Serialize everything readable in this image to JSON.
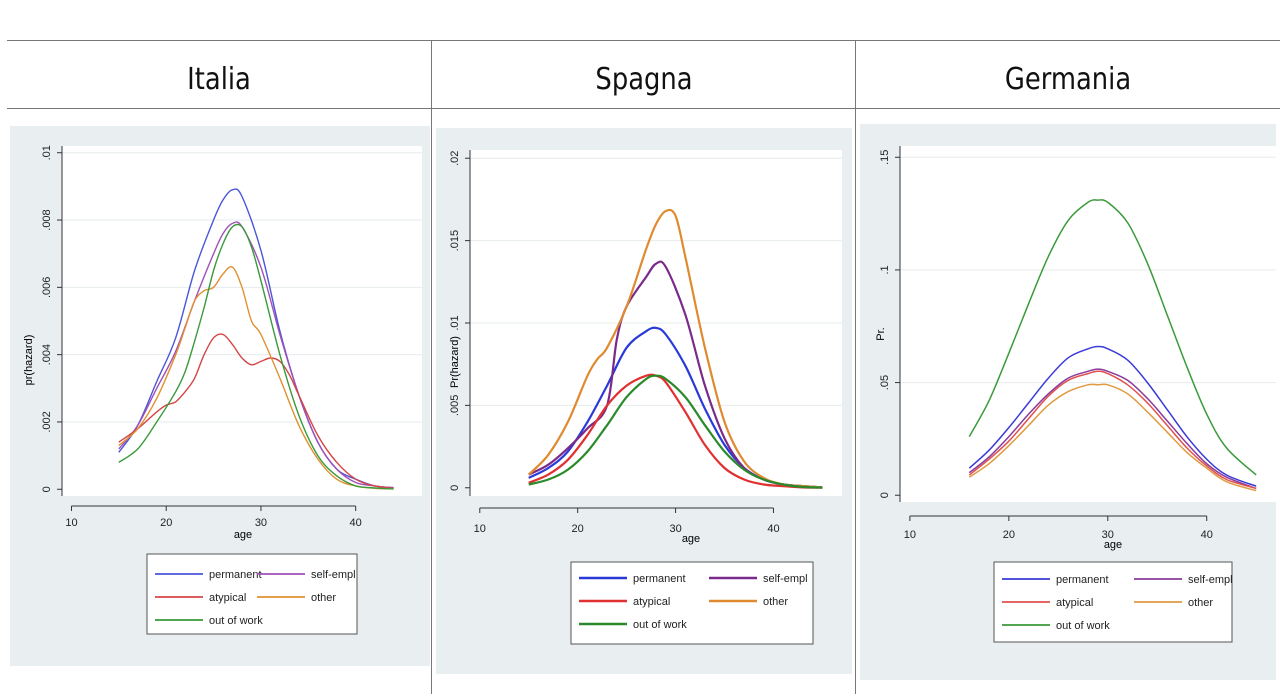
{
  "panels": [
    {
      "title": "Italia"
    },
    {
      "title": "Spagna"
    },
    {
      "title": "Germania"
    }
  ],
  "chart_data": [
    {
      "type": "line",
      "title": "Italia",
      "xlabel": "age",
      "ylabel": "pr(hazard)",
      "xlim": [
        9,
        47
      ],
      "ylim": [
        -0.0002,
        0.0102
      ],
      "xticks": [
        10,
        20,
        30,
        40
      ],
      "xtick_labels": [
        "10",
        "20",
        "30",
        "40"
      ],
      "yticks": [
        0,
        0.002,
        0.004,
        0.006,
        0.008,
        0.01
      ],
      "ytick_labels": [
        "0",
        ".002",
        ".004",
        ".006",
        ".008",
        ".01"
      ],
      "legend_placement": "bottom",
      "series": [
        {
          "name": "permanent",
          "color": "#4a56d8",
          "x": [
            15,
            17,
            19,
            21,
            23,
            25,
            26,
            27,
            28,
            30,
            32,
            34,
            36,
            38,
            40,
            42,
            44
          ],
          "y": [
            0.0011,
            0.0019,
            0.0032,
            0.0045,
            0.0065,
            0.008,
            0.0086,
            0.0089,
            0.0087,
            0.0071,
            0.0047,
            0.0028,
            0.0014,
            0.0006,
            0.0003,
            0.0001,
            5e-05
          ]
        },
        {
          "name": "self-empl",
          "color": "#a050b8",
          "x": [
            15,
            17,
            19,
            21,
            23,
            25,
            26,
            27,
            28,
            30,
            32,
            34,
            36,
            38,
            40,
            42,
            44
          ],
          "y": [
            0.0012,
            0.0019,
            0.003,
            0.0041,
            0.0056,
            0.007,
            0.0076,
            0.0079,
            0.0078,
            0.0066,
            0.0046,
            0.0028,
            0.0014,
            0.0006,
            0.0002,
            0.0001,
            4e-05
          ]
        },
        {
          "name": "atypical",
          "color": "#d44545",
          "x": [
            15,
            17,
            19,
            20,
            21,
            22,
            23,
            24,
            25,
            26,
            27,
            28,
            29,
            30,
            31,
            32,
            33,
            34,
            36,
            38,
            40,
            42,
            44
          ],
          "y": [
            0.0014,
            0.0018,
            0.0023,
            0.0025,
            0.0026,
            0.0029,
            0.0033,
            0.004,
            0.0045,
            0.0046,
            0.0043,
            0.0039,
            0.0037,
            0.0038,
            0.0039,
            0.0038,
            0.0034,
            0.0028,
            0.0016,
            0.0008,
            0.0003,
            0.0001,
            3e-05
          ]
        },
        {
          "name": "other",
          "color": "#e09030",
          "x": [
            15,
            17,
            19,
            21,
            22,
            23,
            24,
            25,
            26,
            27,
            28,
            29,
            30,
            32,
            34,
            36,
            38,
            40,
            42,
            44
          ],
          "y": [
            0.0013,
            0.0018,
            0.0027,
            0.004,
            0.0048,
            0.0056,
            0.0059,
            0.006,
            0.0064,
            0.0066,
            0.006,
            0.005,
            0.0046,
            0.0033,
            0.0019,
            0.0009,
            0.0003,
            0.0001,
            3e-05,
            1e-05
          ]
        },
        {
          "name": "out of work",
          "color": "#3a9a3a",
          "x": [
            15,
            17,
            19,
            21,
            22,
            23,
            24,
            25,
            26,
            27,
            28,
            29,
            30,
            32,
            34,
            36,
            38,
            40,
            42,
            44
          ],
          "y": [
            0.0008,
            0.0012,
            0.002,
            0.0029,
            0.0035,
            0.0044,
            0.0054,
            0.0065,
            0.0073,
            0.0078,
            0.0078,
            0.0072,
            0.0062,
            0.004,
            0.0022,
            0.001,
            0.0004,
            0.0001,
            4e-05,
            1e-05
          ]
        }
      ]
    },
    {
      "type": "line",
      "title": "Spagna",
      "xlabel": "age",
      "ylabel": "Pr(hazard)",
      "xlim": [
        9,
        47
      ],
      "ylim": [
        -0.0005,
        0.0205
      ],
      "xticks": [
        10,
        20,
        30,
        40
      ],
      "xtick_labels": [
        "10",
        "20",
        "30",
        "40"
      ],
      "yticks": [
        0,
        0.005,
        0.01,
        0.015,
        0.02
      ],
      "ytick_labels": [
        "0",
        ".005",
        ".01",
        ".015",
        ".02"
      ],
      "legend_placement": "bottom",
      "series": [
        {
          "name": "permanent",
          "color": "#2a3ad8",
          "x": [
            15,
            17,
            19,
            21,
            23,
            25,
            27,
            28,
            29,
            31,
            33,
            35,
            37,
            39,
            41,
            43,
            45
          ],
          "y": [
            0.0006,
            0.0012,
            0.0022,
            0.004,
            0.0062,
            0.0085,
            0.0095,
            0.0097,
            0.0093,
            0.0074,
            0.0048,
            0.0026,
            0.0012,
            0.0005,
            0.0002,
            0.0001,
            2e-05
          ]
        },
        {
          "name": "self-empl",
          "color": "#7a2a8a",
          "x": [
            15,
            17,
            19,
            21,
            23,
            24,
            25,
            27,
            28,
            29,
            31,
            33,
            35,
            37,
            39,
            41,
            43,
            45
          ],
          "y": [
            0.0008,
            0.0014,
            0.0024,
            0.0036,
            0.005,
            0.009,
            0.011,
            0.0128,
            0.0136,
            0.0134,
            0.0105,
            0.0062,
            0.003,
            0.0012,
            0.0005,
            0.0002,
            0.0001,
            2e-05
          ]
        },
        {
          "name": "atypical",
          "color": "#e03030",
          "x": [
            15,
            17,
            19,
            21,
            23,
            25,
            27,
            28,
            29,
            31,
            33,
            35,
            37,
            39,
            41,
            43,
            45
          ],
          "y": [
            0.0003,
            0.0008,
            0.0017,
            0.0032,
            0.005,
            0.0062,
            0.0068,
            0.0068,
            0.0064,
            0.0046,
            0.0026,
            0.0012,
            0.0005,
            0.0002,
            0.0001,
            2e-05,
            1e-05
          ]
        },
        {
          "name": "other",
          "color": "#e08a30",
          "x": [
            15,
            17,
            19,
            21,
            22,
            23,
            25,
            27,
            28,
            29,
            30,
            31,
            33,
            35,
            37,
            39,
            41,
            43,
            45
          ],
          "y": [
            0.0008,
            0.002,
            0.004,
            0.0068,
            0.0078,
            0.0085,
            0.011,
            0.0145,
            0.016,
            0.0168,
            0.0165,
            0.014,
            0.0085,
            0.004,
            0.0016,
            0.0006,
            0.0002,
            0.0001,
            2e-05
          ]
        },
        {
          "name": "out of work",
          "color": "#2a8a2a",
          "x": [
            15,
            17,
            19,
            21,
            23,
            25,
            27,
            28,
            29,
            31,
            33,
            35,
            37,
            39,
            41,
            43,
            45
          ],
          "y": [
            0.0002,
            0.0005,
            0.0011,
            0.0022,
            0.0038,
            0.0055,
            0.0066,
            0.0068,
            0.0066,
            0.0055,
            0.0038,
            0.0022,
            0.0011,
            0.0005,
            0.0002,
            5e-05,
            1e-05
          ]
        }
      ]
    },
    {
      "type": "line",
      "title": "Germania",
      "xlabel": "age",
      "ylabel": "Pr.",
      "xlim": [
        9,
        47
      ],
      "ylim": [
        -0.003,
        0.155
      ],
      "xticks": [
        10,
        20,
        30,
        40
      ],
      "xtick_labels": [
        "10",
        "20",
        "30",
        "40"
      ],
      "yticks": [
        0,
        0.05,
        0.1,
        0.15
      ],
      "ytick_labels": [
        "0",
        ".05",
        ".1",
        ".15"
      ],
      "legend_placement": "bottom",
      "series": [
        {
          "name": "permanent",
          "color": "#3a3ad8",
          "x": [
            16,
            18,
            20,
            22,
            24,
            26,
            28,
            29,
            30,
            32,
            34,
            36,
            38,
            40,
            42,
            45
          ],
          "y": [
            0.012,
            0.02,
            0.03,
            0.041,
            0.052,
            0.061,
            0.065,
            0.066,
            0.065,
            0.06,
            0.05,
            0.038,
            0.026,
            0.016,
            0.009,
            0.004
          ]
        },
        {
          "name": "self-empl",
          "color": "#8a3a9a",
          "x": [
            16,
            18,
            20,
            22,
            24,
            26,
            28,
            29,
            30,
            32,
            34,
            36,
            38,
            40,
            42,
            45
          ],
          "y": [
            0.01,
            0.017,
            0.026,
            0.036,
            0.045,
            0.052,
            0.055,
            0.056,
            0.055,
            0.051,
            0.043,
            0.033,
            0.023,
            0.014,
            0.008,
            0.003
          ]
        },
        {
          "name": "atypical",
          "color": "#e05050",
          "x": [
            16,
            18,
            20,
            22,
            24,
            26,
            28,
            29,
            30,
            32,
            34,
            36,
            38,
            40,
            42,
            45
          ],
          "y": [
            0.009,
            0.016,
            0.024,
            0.034,
            0.044,
            0.051,
            0.054,
            0.055,
            0.054,
            0.049,
            0.041,
            0.031,
            0.021,
            0.013,
            0.007,
            0.003
          ]
        },
        {
          "name": "other",
          "color": "#e09a40",
          "x": [
            16,
            18,
            20,
            22,
            24,
            26,
            28,
            29,
            30,
            32,
            34,
            36,
            38,
            40,
            42,
            45
          ],
          "y": [
            0.008,
            0.014,
            0.022,
            0.031,
            0.04,
            0.046,
            0.049,
            0.049,
            0.049,
            0.045,
            0.037,
            0.028,
            0.019,
            0.012,
            0.006,
            0.002
          ]
        },
        {
          "name": "out of work",
          "color": "#3a9a3a",
          "x": [
            16,
            18,
            20,
            22,
            24,
            26,
            28,
            29,
            30,
            32,
            34,
            36,
            38,
            40,
            42,
            45
          ],
          "y": [
            0.026,
            0.042,
            0.063,
            0.085,
            0.106,
            0.122,
            0.13,
            0.131,
            0.13,
            0.121,
            0.103,
            0.08,
            0.057,
            0.036,
            0.021,
            0.009
          ]
        }
      ]
    }
  ]
}
